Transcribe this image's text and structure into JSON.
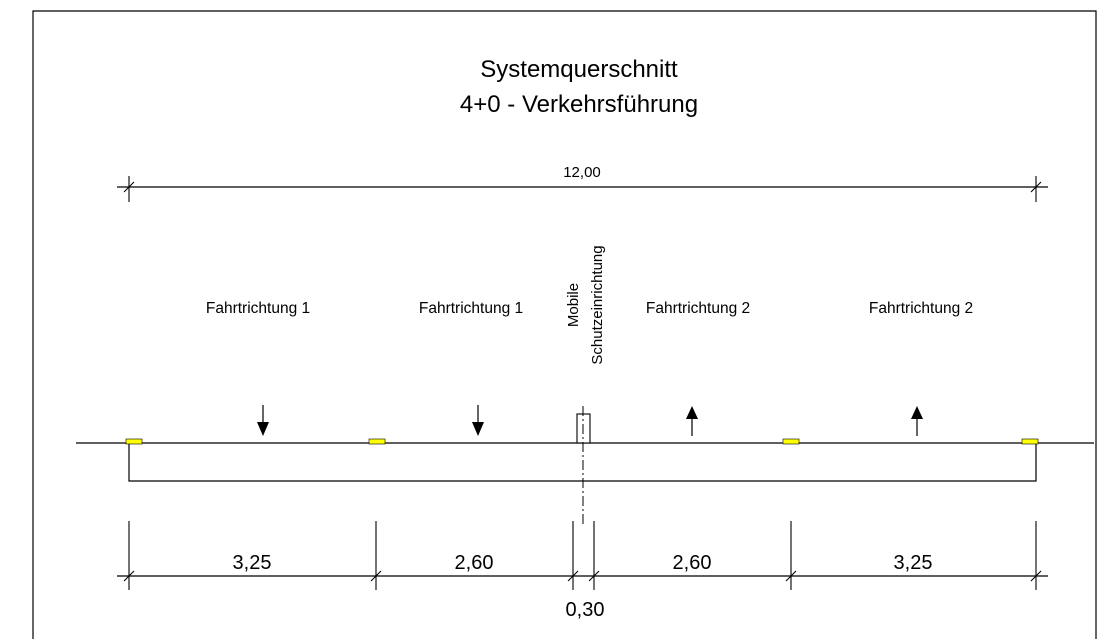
{
  "title": {
    "line1": "Systemquerschnitt",
    "line2": "4+0 - Verkehrsführung"
  },
  "overall_width": "12,00",
  "lanes": [
    {
      "label": "Fahrtrichtung 1",
      "direction": "down"
    },
    {
      "label": "Fahrtrichtung 1",
      "direction": "down"
    },
    {
      "label": "Fahrtrichtung 2",
      "direction": "up"
    },
    {
      "label": "Fahrtrichtung 2",
      "direction": "up"
    }
  ],
  "barrier": {
    "line1": "Mobile",
    "line2": "Schutzeinrichtung"
  },
  "dimensions": [
    "3,25",
    "2,60",
    "0,30",
    "2,60",
    "3,25"
  ],
  "colors": {
    "marking": "#ffff00",
    "line": "#000000",
    "background": "#ffffff"
  }
}
